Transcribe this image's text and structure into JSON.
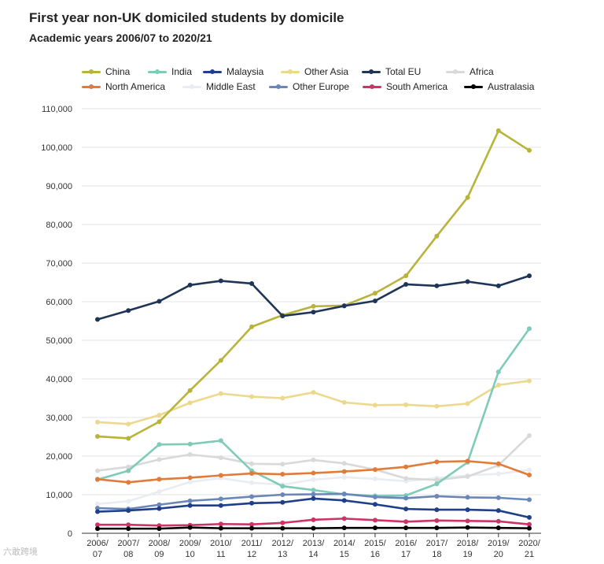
{
  "chart_data": {
    "type": "line",
    "title": "First year non-UK domiciled students by domicile",
    "subtitle": "Academic years 2006/07 to 2020/21",
    "xlabel": "",
    "ylabel": "",
    "ylim": [
      0,
      110000
    ],
    "yticks": [
      0,
      10000,
      20000,
      30000,
      40000,
      50000,
      60000,
      70000,
      80000,
      90000,
      100000,
      110000
    ],
    "ytick_labels": [
      "0",
      "10,000",
      "20,000",
      "30,000",
      "40,000",
      "50,000",
      "60,000",
      "70,000",
      "80,000",
      "90,000",
      "100,000",
      "110,000"
    ],
    "categories": [
      [
        "2006/",
        "07"
      ],
      [
        "2007/",
        "08"
      ],
      [
        "2008/",
        "09"
      ],
      [
        "2009/",
        "10"
      ],
      [
        "2010/",
        "11"
      ],
      [
        "2011/",
        "12"
      ],
      [
        "2012/",
        "13"
      ],
      [
        "2013/",
        "14"
      ],
      [
        "2014/",
        "15"
      ],
      [
        "2015/",
        "16"
      ],
      [
        "2016/",
        "17"
      ],
      [
        "2017/",
        "18"
      ],
      [
        "2018/",
        "19"
      ],
      [
        "2019/",
        "20"
      ],
      [
        "2020/",
        "21"
      ]
    ],
    "legend_position": "top",
    "grid": true,
    "series": [
      {
        "name": "China",
        "color": "#b8b43a",
        "values": [
          25100,
          24600,
          28900,
          37000,
          44800,
          53500,
          56500,
          58800,
          59000,
          62200,
          66700,
          77000,
          87000,
          104300,
          99200
        ]
      },
      {
        "name": "India",
        "color": "#7fcbb9",
        "values": [
          13900,
          16200,
          23000,
          23100,
          24000,
          16200,
          12200,
          11200,
          10100,
          9700,
          9800,
          12800,
          18400,
          41800,
          53000
        ]
      },
      {
        "name": "Malaysia",
        "color": "#1f3f8a",
        "values": [
          5600,
          5900,
          6400,
          7200,
          7200,
          7800,
          8000,
          9000,
          8500,
          7500,
          6300,
          6100,
          6100,
          5900,
          4100
        ]
      },
      {
        "name": "Other Asia",
        "color": "#ecd98e",
        "values": [
          28800,
          28300,
          30600,
          33800,
          36200,
          35400,
          35000,
          36500,
          33900,
          33200,
          33300,
          32900,
          33600,
          38400,
          39500
        ]
      },
      {
        "name": "Total EU",
        "color": "#1e3557",
        "values": [
          55400,
          57700,
          60100,
          64300,
          65400,
          64700,
          56300,
          57300,
          58900,
          60200,
          64500,
          64100,
          65200,
          64100,
          66700
        ]
      },
      {
        "name": "Africa",
        "color": "#d9d9d9",
        "values": [
          16200,
          17200,
          19100,
          20400,
          19600,
          18000,
          17900,
          19000,
          18100,
          16500,
          14200,
          13800,
          14700,
          17600,
          25300
        ]
      },
      {
        "name": "North America",
        "color": "#e07b39",
        "values": [
          14000,
          13200,
          14000,
          14400,
          15000,
          15500,
          15300,
          15600,
          16000,
          16500,
          17200,
          18500,
          18700,
          18000,
          15100
        ]
      },
      {
        "name": "Middle East",
        "color": "#e9ecf2",
        "values": [
          7600,
          8300,
          10800,
          13300,
          14300,
          13100,
          12600,
          13900,
          14500,
          14100,
          13500,
          14300,
          15000,
          15400,
          16400
        ]
      },
      {
        "name": "Other Europe",
        "color": "#6b86b8",
        "values": [
          6500,
          6300,
          7400,
          8400,
          8900,
          9500,
          10000,
          10100,
          10200,
          9400,
          9100,
          9600,
          9300,
          9200,
          8700
        ]
      },
      {
        "name": "South America",
        "color": "#cc3366",
        "values": [
          2200,
          2200,
          2000,
          2100,
          2400,
          2300,
          2700,
          3500,
          3800,
          3400,
          3000,
          3300,
          3200,
          3100,
          2300
        ]
      },
      {
        "name": "Australasia",
        "color": "#000000",
        "values": [
          1200,
          1200,
          1200,
          1500,
          1300,
          1300,
          1300,
          1300,
          1400,
          1400,
          1400,
          1400,
          1500,
          1400,
          1300
        ]
      }
    ]
  },
  "watermark": "六敢跨境"
}
